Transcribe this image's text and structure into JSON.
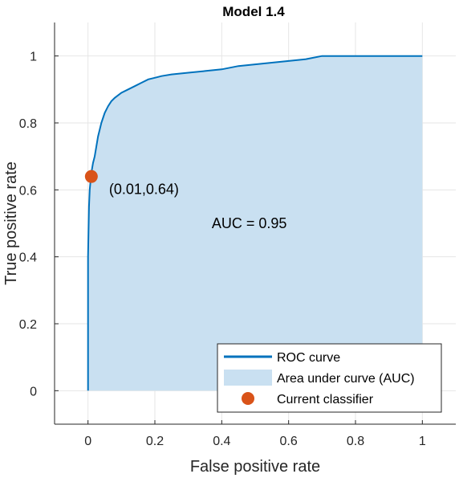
{
  "chart_data": {
    "type": "area",
    "title": "Model 1.4",
    "xlabel": "False positive rate",
    "ylabel": "True positive rate",
    "xlim": [
      -0.1,
      1.1
    ],
    "ylim": [
      -0.1,
      1.1
    ],
    "xticks": [
      "0",
      "0.2",
      "0.4",
      "0.6",
      "0.8",
      "1"
    ],
    "yticks": [
      "0",
      "0.2",
      "0.4",
      "0.6",
      "0.8",
      "1"
    ],
    "xtick_values": [
      0,
      0.2,
      0.4,
      0.6,
      0.8,
      1
    ],
    "ytick_values": [
      0,
      0.2,
      0.4,
      0.6,
      0.8,
      1
    ],
    "grid": true,
    "legend_position": "bottom-right",
    "colors": {
      "roc": "#0072BD",
      "area": "#C9E0F1",
      "marker": "#D95319",
      "grid": "#E6E6E6",
      "axis": "#262626"
    },
    "series": [
      {
        "name": "ROC curve",
        "x": [
          0,
          0,
          0.003,
          0.005,
          0.008,
          0.01,
          0.015,
          0.02,
          0.025,
          0.03,
          0.035,
          0.04,
          0.05,
          0.06,
          0.07,
          0.08,
          0.1,
          0.12,
          0.14,
          0.16,
          0.18,
          0.2,
          0.22,
          0.25,
          0.3,
          0.35,
          0.4,
          0.45,
          0.5,
          0.55,
          0.6,
          0.65,
          0.7,
          0.8,
          0.9,
          0.95,
          1
        ],
        "y": [
          0,
          0.4,
          0.55,
          0.6,
          0.63,
          0.65,
          0.68,
          0.7,
          0.73,
          0.76,
          0.78,
          0.8,
          0.83,
          0.85,
          0.865,
          0.875,
          0.89,
          0.9,
          0.91,
          0.92,
          0.93,
          0.935,
          0.94,
          0.945,
          0.95,
          0.955,
          0.96,
          0.97,
          0.975,
          0.98,
          0.985,
          0.99,
          1.0,
          1.0,
          1.0,
          1.0,
          1.0
        ]
      }
    ],
    "legend": [
      "ROC curve",
      "Area under curve (AUC)",
      "Current classifier"
    ],
    "current_classifier": {
      "x": 0.01,
      "y": 0.64,
      "label": "(0.01,0.64)"
    },
    "auc_label": "AUC = 0.95"
  }
}
